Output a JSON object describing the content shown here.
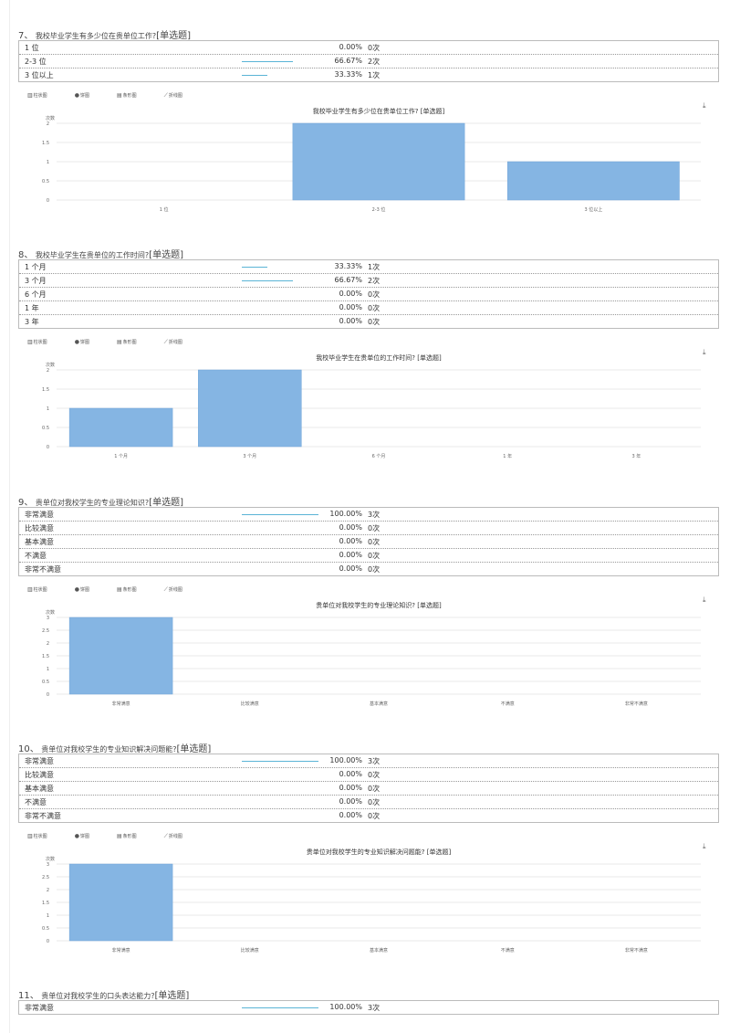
{
  "colors": {
    "bar": "#85b5e3",
    "bar_stroke": "#6fa4d8",
    "grid": "#e2e2e2",
    "pct_bar": "#5ab4d6"
  },
  "toolbar": {
    "bar": "柱状图",
    "pie": "饼图",
    "hbar": "条形图",
    "line": "折线图"
  },
  "questions": [
    {
      "num": "7、",
      "text": "我校毕业学生有多少位在贵单位工作?",
      "tag": "[单选题]",
      "rows": [
        {
          "label": "1 位",
          "pct": "0.00%",
          "count": "0次",
          "frac": 0
        },
        {
          "label": "2-3 位",
          "pct": "66.67%",
          "count": "2次",
          "frac": 0.6667
        },
        {
          "label": "3 位以上",
          "pct": "33.33%",
          "count": "1次",
          "frac": 0.3333
        }
      ]
    },
    {
      "num": "8、",
      "text": "我校毕业学生在贵单位的工作时间?",
      "tag": "[单选题]",
      "rows": [
        {
          "label": "1 个月",
          "pct": "33.33%",
          "count": "1次",
          "frac": 0.3333
        },
        {
          "label": "3 个月",
          "pct": "66.67%",
          "count": "2次",
          "frac": 0.6667
        },
        {
          "label": "6 个月",
          "pct": "0.00%",
          "count": "0次",
          "frac": 0
        },
        {
          "label": "1 年",
          "pct": "0.00%",
          "count": "0次",
          "frac": 0
        },
        {
          "label": "3 年",
          "pct": "0.00%",
          "count": "0次",
          "frac": 0
        }
      ]
    },
    {
      "num": "9、",
      "text": "贵单位对我校学生的专业理论知识?",
      "tag": "[单选题]",
      "rows": [
        {
          "label": "非常满意",
          "pct": "100.00%",
          "count": "3次",
          "frac": 1
        },
        {
          "label": "比较满意",
          "pct": "0.00%",
          "count": "0次",
          "frac": 0
        },
        {
          "label": "基本满意",
          "pct": "0.00%",
          "count": "0次",
          "frac": 0
        },
        {
          "label": "不满意",
          "pct": "0.00%",
          "count": "0次",
          "frac": 0
        },
        {
          "label": "非常不满意",
          "pct": "0.00%",
          "count": "0次",
          "frac": 0
        }
      ]
    },
    {
      "num": "10、",
      "text": "贵单位对我校学生的专业知识解决问题能?",
      "tag": "[单选题]",
      "rows": [
        {
          "label": "非常满意",
          "pct": "100.00%",
          "count": "3次",
          "frac": 1
        },
        {
          "label": "比较满意",
          "pct": "0.00%",
          "count": "0次",
          "frac": 0
        },
        {
          "label": "基本满意",
          "pct": "0.00%",
          "count": "0次",
          "frac": 0
        },
        {
          "label": "不满意",
          "pct": "0.00%",
          "count": "0次",
          "frac": 0
        },
        {
          "label": "非常不满意",
          "pct": "0.00%",
          "count": "0次",
          "frac": 0
        }
      ]
    },
    {
      "num": "11、",
      "text": "贵单位对我校学生的口头表达能力?",
      "tag": "[单选题]",
      "rows": [
        {
          "label": "非常满意",
          "pct": "100.00%",
          "count": "3次",
          "frac": 1
        }
      ]
    }
  ],
  "chart_data": [
    {
      "type": "bar",
      "title": "我校毕业学生有多少位在贵单位工作? [单选题]",
      "ylabel": "次数",
      "categories": [
        "1 位",
        "2-3 位",
        "3 位以上"
      ],
      "values": [
        0,
        2,
        1
      ],
      "ylim": [
        0,
        2
      ],
      "yticks": [
        "0",
        "0.5",
        "1",
        "1.5",
        "2"
      ],
      "grid": true
    },
    {
      "type": "bar",
      "title": "我校毕业学生在贵单位的工作时间? [单选题]",
      "ylabel": "次数",
      "categories": [
        "1 个月",
        "3 个月",
        "6 个月",
        "1 年",
        "3 年"
      ],
      "values": [
        1,
        2,
        0,
        0,
        0
      ],
      "ylim": [
        0,
        2
      ],
      "yticks": [
        "0",
        "0.5",
        "1",
        "1.5",
        "2"
      ],
      "grid": true
    },
    {
      "type": "bar",
      "title": "贵单位对我校学生的专业理论知识? [单选题]",
      "ylabel": "次数",
      "categories": [
        "非常满意",
        "比较满意",
        "基本满意",
        "不满意",
        "非常不满意"
      ],
      "values": [
        3,
        0,
        0,
        0,
        0
      ],
      "ylim": [
        0,
        3
      ],
      "yticks": [
        "0",
        "0.5",
        "1",
        "1.5",
        "2",
        "2.5",
        "3"
      ],
      "grid": true
    },
    {
      "type": "bar",
      "title": "贵单位对我校学生的专业知识解决问题能? [单选题]",
      "ylabel": "次数",
      "categories": [
        "非常满意",
        "比较满意",
        "基本满意",
        "不满意",
        "非常不满意"
      ],
      "values": [
        3,
        0,
        0,
        0,
        0
      ],
      "ylim": [
        0,
        3
      ],
      "yticks": [
        "0",
        "0.5",
        "1",
        "1.5",
        "2",
        "2.5",
        "3"
      ],
      "grid": true
    }
  ]
}
